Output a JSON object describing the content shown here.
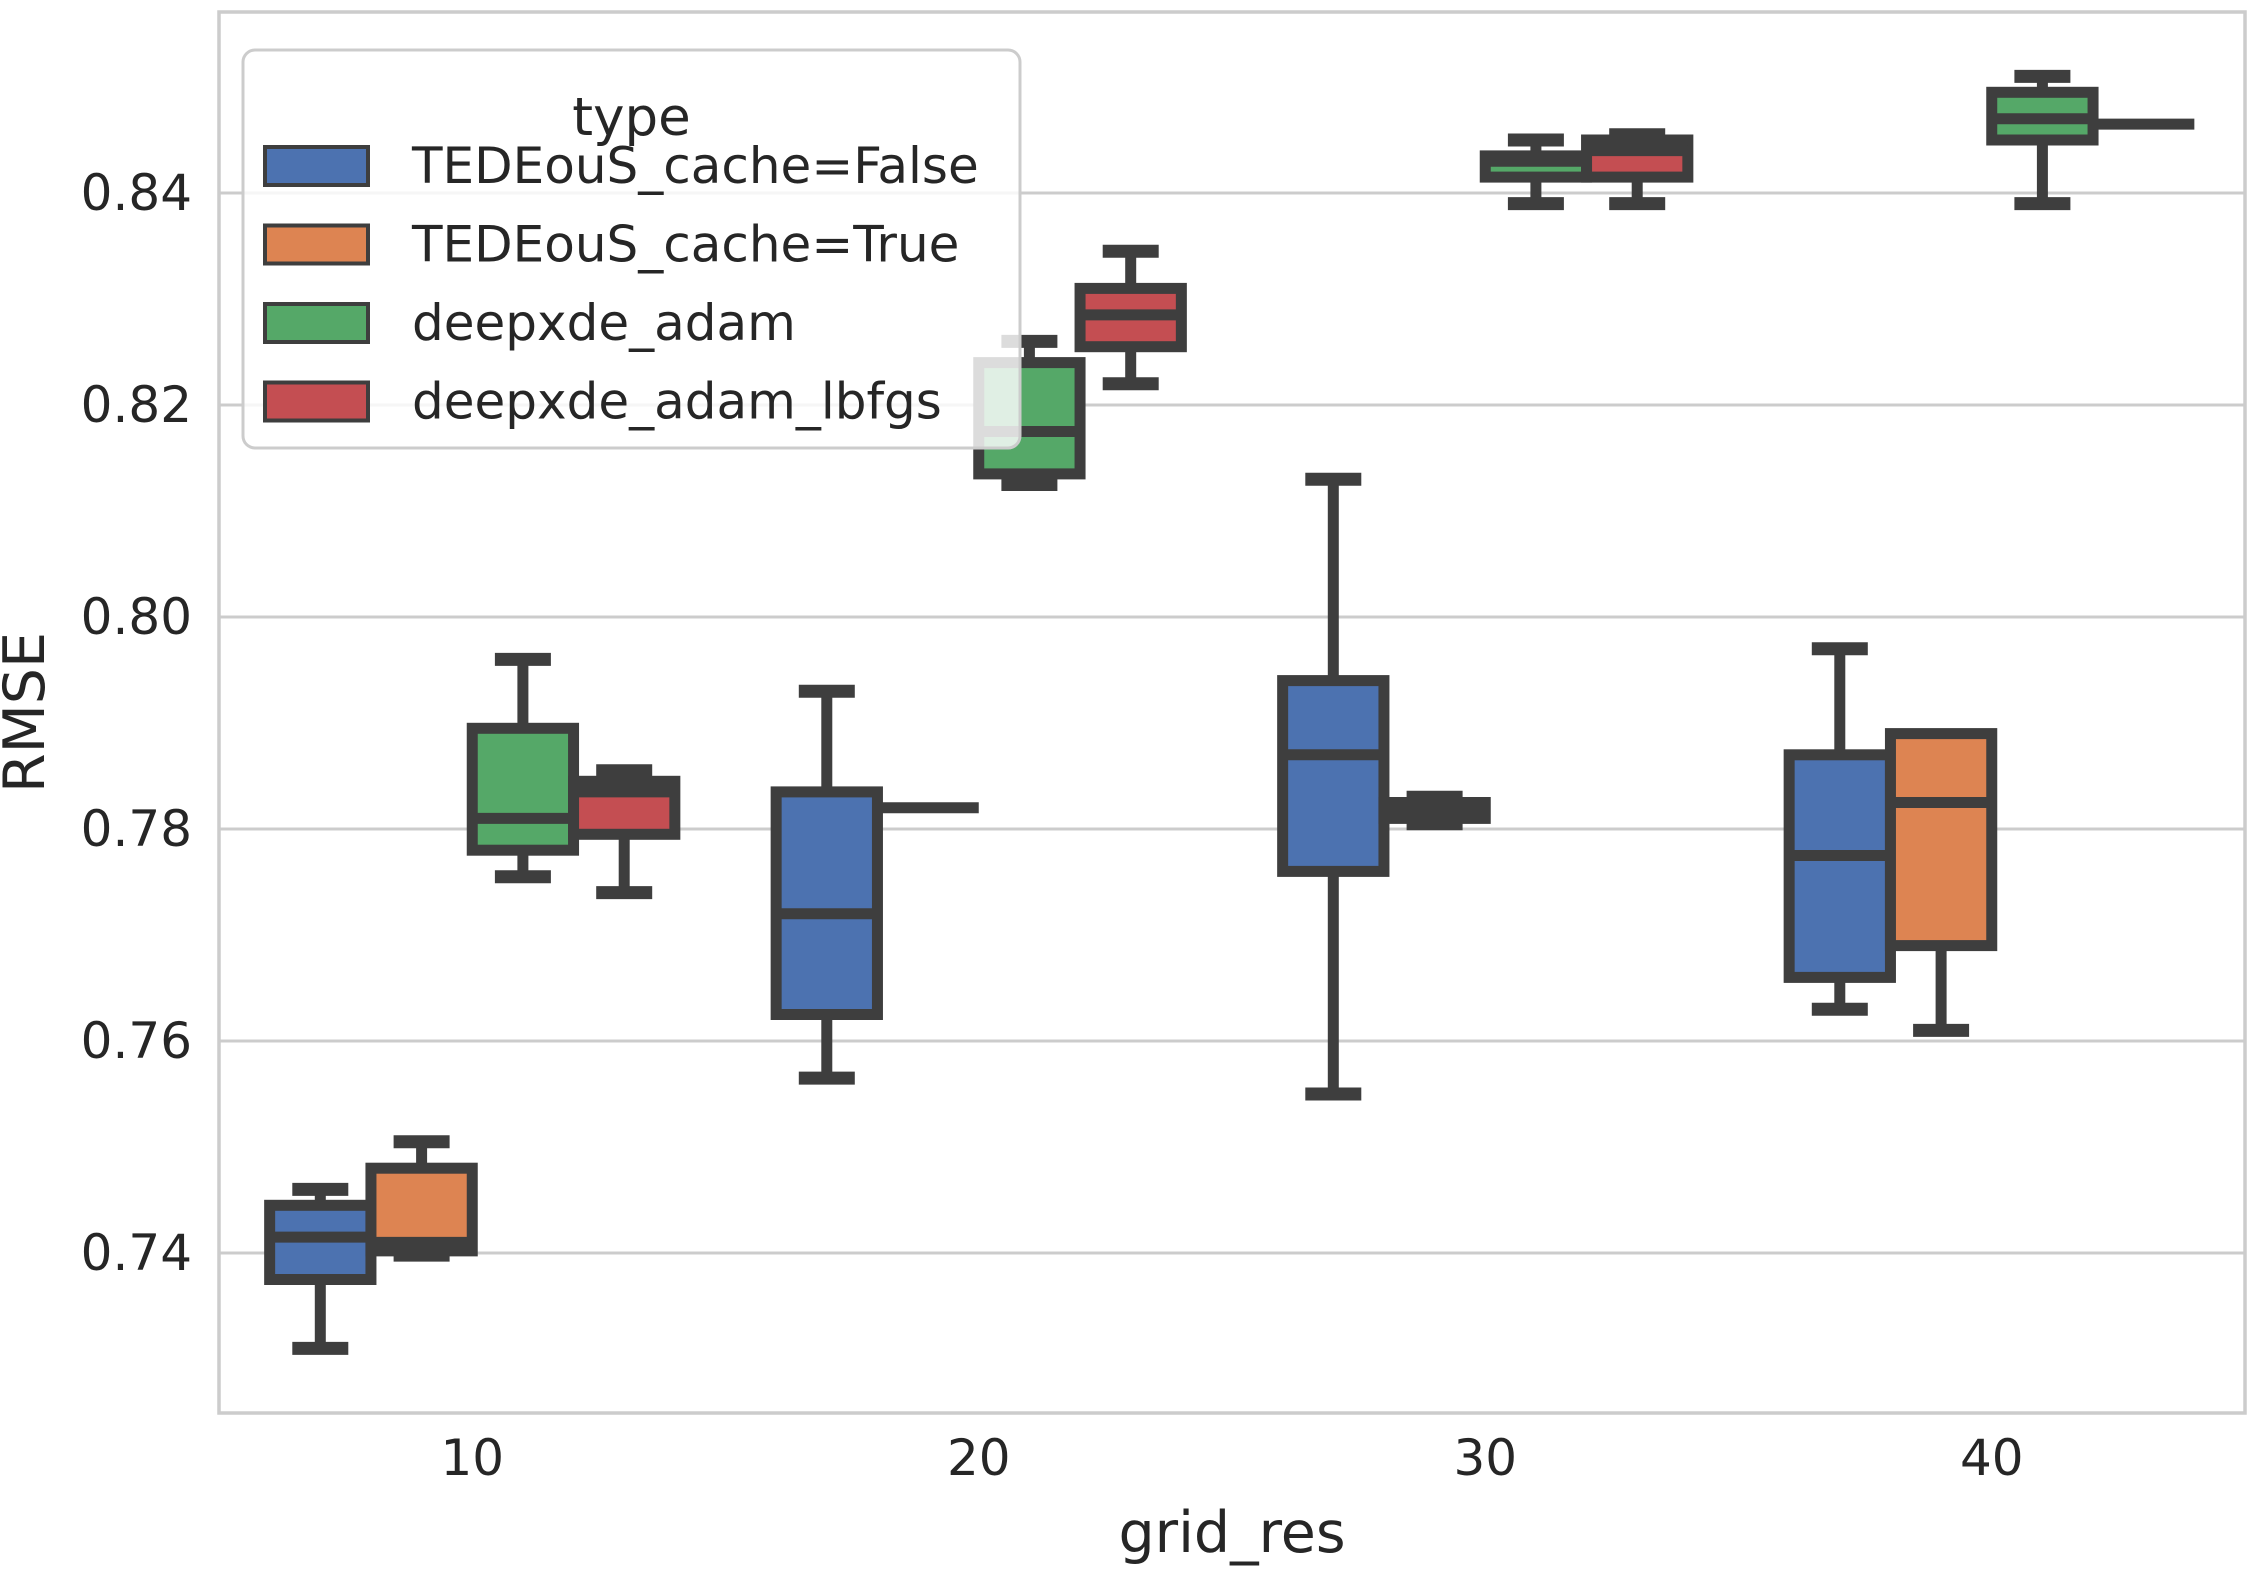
{
  "figure": {
    "background": "#ffffff"
  },
  "chart_data": {
    "type": "box",
    "title": "",
    "xlabel": "grid_res",
    "ylabel": "RMSE",
    "grid": "horizontal",
    "legend": {
      "title": "type",
      "position": "upper-left"
    },
    "x_categories": [
      "10",
      "20",
      "30",
      "40"
    ],
    "x_values": [
      10,
      20,
      30,
      40
    ],
    "yticks": [
      {
        "label": "0.84",
        "value": 0.84
      },
      {
        "label": "0.82",
        "value": 0.82
      },
      {
        "label": "0.80",
        "value": 0.8
      },
      {
        "label": "0.78",
        "value": 0.78
      },
      {
        "label": "0.76",
        "value": 0.76
      },
      {
        "label": "0.74",
        "value": 0.74
      }
    ],
    "ylim": [
      0.725,
      0.857
    ],
    "colors": {
      "edge": "#3E3E3E",
      "grid": "#CCCCCC",
      "spine": "#CCCCCC",
      "text": "#262626",
      "legend_bg": "rgba(255,255,255,0.82)",
      "legend_border": "#CCCCCC"
    },
    "series": [
      {
        "name": "TEDEouS_cache=False",
        "color": "#4C72B0",
        "boxes": [
          {
            "x": 10,
            "whislo": 0.731,
            "q1": 0.7375,
            "med": 0.7415,
            "q3": 0.7445,
            "whishi": 0.746
          },
          {
            "x": 20,
            "whislo": 0.7565,
            "q1": 0.7625,
            "med": 0.772,
            "q3": 0.7835,
            "whishi": 0.793
          },
          {
            "x": 30,
            "whislo": 0.755,
            "q1": 0.776,
            "med": 0.787,
            "q3": 0.794,
            "whishi": 0.813
          },
          {
            "x": 40,
            "whislo": 0.763,
            "q1": 0.766,
            "med": 0.7775,
            "q3": 0.787,
            "whishi": 0.797
          }
        ]
      },
      {
        "name": "TEDEouS_cache=True",
        "color": "#DD8452",
        "boxes": [
          {
            "x": 10,
            "whislo": 0.7398,
            "q1": 0.7402,
            "med": 0.741,
            "q3": 0.748,
            "whishi": 0.7505
          },
          {
            "x": 20,
            "whislo": 0.782,
            "q1": 0.782,
            "med": 0.782,
            "q3": 0.782,
            "whishi": 0.782,
            "flat": true
          },
          {
            "x": 30,
            "whislo": 0.7805,
            "q1": 0.781,
            "med": 0.7815,
            "q3": 0.7825,
            "whishi": 0.783
          },
          {
            "x": 40,
            "whislo": 0.761,
            "q1": 0.769,
            "med": 0.7825,
            "q3": 0.789,
            "whishi": 0.789
          }
        ]
      },
      {
        "name": "deepxde_adam",
        "color": "#55A868",
        "boxes": [
          {
            "x": 10,
            "whislo": 0.7755,
            "q1": 0.778,
            "med": 0.781,
            "q3": 0.7895,
            "whishi": 0.796
          },
          {
            "x": 20,
            "whislo": 0.8125,
            "q1": 0.8135,
            "med": 0.8175,
            "q3": 0.824,
            "whishi": 0.826
          },
          {
            "x": 30,
            "whislo": 0.839,
            "q1": 0.8415,
            "med": 0.843,
            "q3": 0.8435,
            "whishi": 0.845
          },
          {
            "x": 40,
            "whislo": 0.839,
            "q1": 0.845,
            "med": 0.847,
            "q3": 0.8495,
            "whishi": 0.851
          }
        ]
      },
      {
        "name": "deepxde_adam_lbfgs",
        "color": "#C44E52",
        "boxes": [
          {
            "x": 10,
            "whislo": 0.774,
            "q1": 0.7795,
            "med": 0.7835,
            "q3": 0.7845,
            "whishi": 0.7855
          },
          {
            "x": 20,
            "whislo": 0.822,
            "q1": 0.8255,
            "med": 0.8285,
            "q3": 0.831,
            "whishi": 0.8345
          },
          {
            "x": 30,
            "whislo": 0.839,
            "q1": 0.8415,
            "med": 0.844,
            "q3": 0.845,
            "whishi": 0.8455
          },
          {
            "x": 40,
            "whislo": 0.8465,
            "q1": 0.8465,
            "med": 0.8465,
            "q3": 0.8465,
            "whishi": 0.8465,
            "flat": true
          }
        ]
      }
    ]
  }
}
